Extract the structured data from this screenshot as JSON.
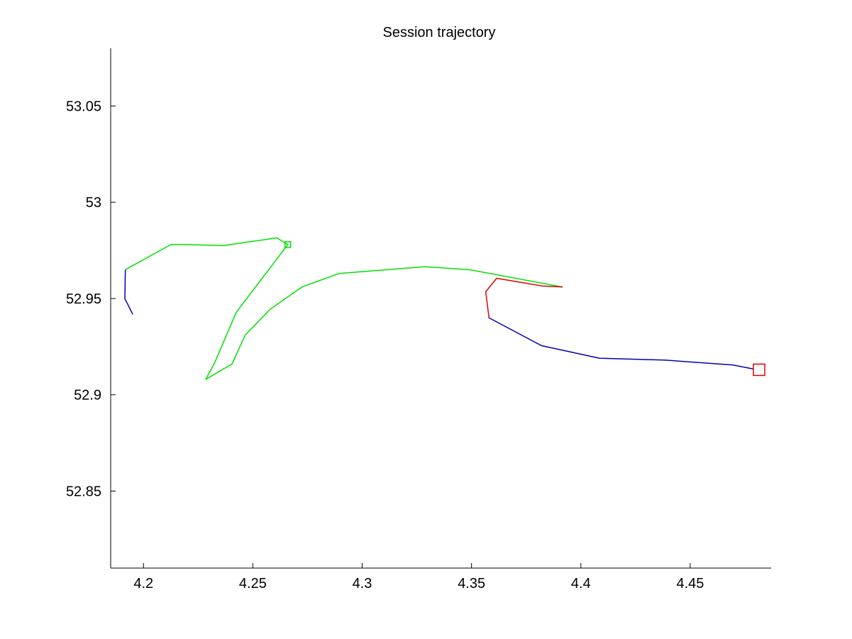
{
  "chart_data": {
    "type": "line",
    "title": "Session trajectory",
    "xlabel": "",
    "ylabel": "",
    "xlim": [
      4.185,
      4.487
    ],
    "ylim": [
      52.81,
      53.08
    ],
    "x_ticks": [
      4.2,
      4.25,
      4.3,
      4.35,
      4.4,
      4.45
    ],
    "x_tick_labels": [
      "4.2",
      "4.25",
      "4.3",
      "4.35",
      "4.4",
      "4.45"
    ],
    "y_ticks": [
      52.85,
      52.9,
      52.95,
      53.0,
      53.05
    ],
    "y_tick_labels": [
      "52.85",
      "52.9",
      "52.95",
      "53",
      "53.05"
    ],
    "grid": false,
    "legend": "none",
    "series": [
      {
        "color": "#0000b4",
        "x": [
          4.195,
          4.1915,
          4.1917
        ],
        "y": [
          52.942,
          52.95,
          52.965
        ]
      },
      {
        "color": "#00e000",
        "x": [
          4.1917,
          4.2125,
          4.2205,
          4.2365,
          4.261,
          4.266,
          4.2425,
          4.2325,
          4.2285,
          4.2405,
          4.2465,
          4.258,
          4.2725,
          4.2895,
          4.3285,
          4.349,
          4.3915
        ],
        "y": [
          52.965,
          52.978,
          52.978,
          52.9775,
          52.9815,
          52.978,
          52.943,
          52.9165,
          52.908,
          52.916,
          52.931,
          52.9445,
          52.956,
          52.963,
          52.9665,
          52.965,
          52.956
        ]
      },
      {
        "color": "#e00000",
        "x": [
          4.3915,
          4.3825,
          4.3615,
          4.3565,
          4.358
        ],
        "y": [
          52.956,
          52.9565,
          52.9605,
          52.9535,
          52.94
        ]
      },
      {
        "color": "#0000b4",
        "x": [
          4.358,
          4.382,
          4.4085,
          4.4385,
          4.4695,
          4.4785
        ],
        "y": [
          52.94,
          52.9255,
          52.919,
          52.918,
          52.9155,
          52.9135
        ]
      }
    ],
    "markers": [
      {
        "shape": "square",
        "color": "#00e000",
        "x": 4.266,
        "y": 52.978,
        "size": "small"
      },
      {
        "shape": "square",
        "color": "#e00000",
        "x": 4.4815,
        "y": 52.913,
        "size": "large"
      }
    ]
  }
}
